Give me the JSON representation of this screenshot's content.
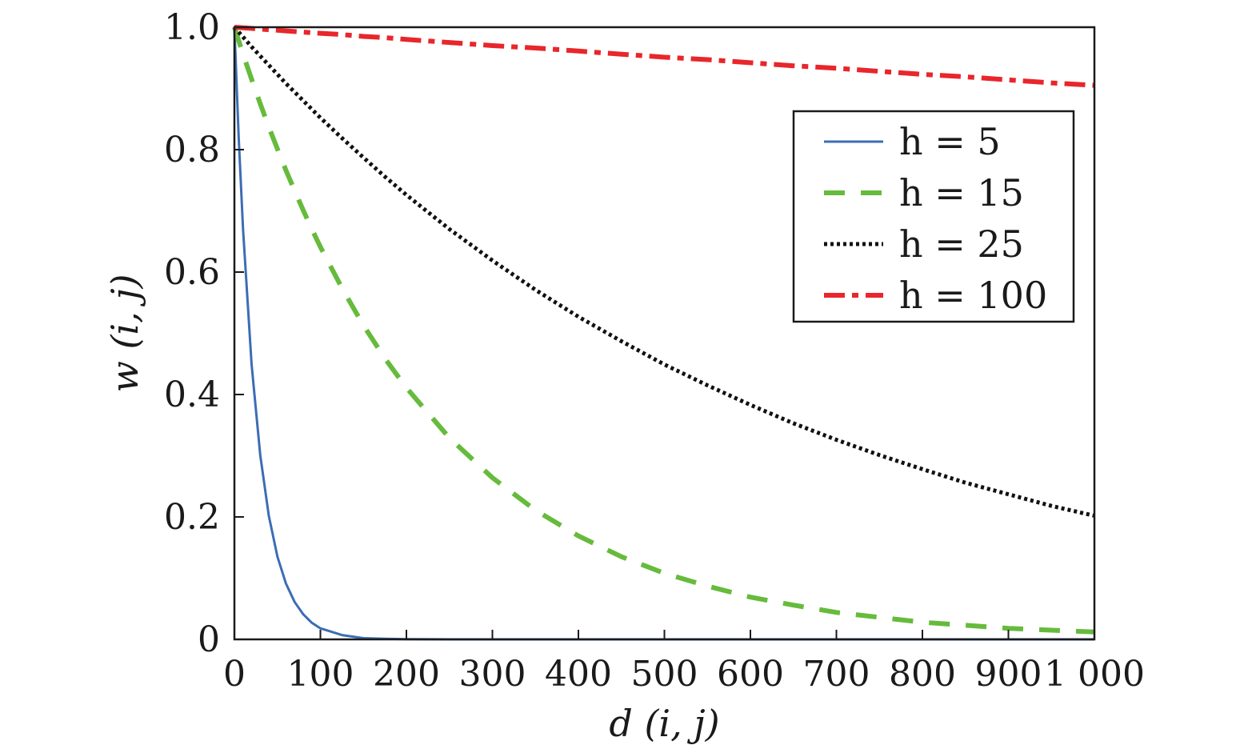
{
  "chart_data": {
    "type": "line",
    "xlabel": "d (i, j)",
    "ylabel": "w (i, j)",
    "xlim": [
      0,
      1000
    ],
    "ylim": [
      0,
      1
    ],
    "x_ticks": [
      0,
      100,
      200,
      300,
      400,
      500,
      600,
      700,
      800,
      900,
      1000
    ],
    "x_tick_labels": [
      "0",
      "100",
      "200",
      "300",
      "400",
      "500",
      "600",
      "700",
      "800",
      "900",
      "1 000"
    ],
    "y_ticks": [
      0,
      0.2,
      0.4,
      0.6,
      0.8,
      1.0
    ],
    "y_tick_labels": [
      "0",
      "0.2",
      "0.4",
      "0.6",
      "0.8",
      "1.0"
    ],
    "grid": false,
    "legend_position": "top-right",
    "x": [
      0,
      5,
      10,
      20,
      30,
      40,
      50,
      60,
      70,
      80,
      90,
      100,
      125,
      150,
      175,
      200,
      250,
      300,
      350,
      400,
      450,
      500,
      550,
      600,
      650,
      700,
      750,
      800,
      850,
      900,
      950,
      1000
    ],
    "series": [
      {
        "name": "h = 5",
        "color": "#3b6db5",
        "style": "solid",
        "values": [
          1.0,
          0.819,
          0.67,
          0.449,
          0.301,
          0.202,
          0.135,
          0.091,
          0.061,
          0.041,
          0.027,
          0.018,
          0.007,
          0.002,
          0.001,
          0.0003,
          0.0,
          0.0,
          0.0,
          0.0,
          0.0,
          0.0,
          0.0,
          0.0,
          0.0,
          0.0,
          0.0,
          0.0,
          0.0,
          0.0,
          0.0,
          0.0
        ]
      },
      {
        "name": "h = 15",
        "color": "#66bb3c",
        "style": "dashed",
        "values": [
          1.0,
          0.978,
          0.956,
          0.915,
          0.875,
          0.837,
          0.801,
          0.766,
          0.733,
          0.701,
          0.67,
          0.641,
          0.574,
          0.513,
          0.459,
          0.411,
          0.329,
          0.264,
          0.211,
          0.169,
          0.135,
          0.108,
          0.087,
          0.069,
          0.056,
          0.044,
          0.036,
          0.028,
          0.023,
          0.018,
          0.015,
          0.012
        ]
      },
      {
        "name": "h = 25",
        "color": "#111111",
        "style": "dotted",
        "values": [
          1.0,
          0.992,
          0.984,
          0.968,
          0.953,
          0.938,
          0.923,
          0.908,
          0.894,
          0.88,
          0.866,
          0.852,
          0.819,
          0.787,
          0.756,
          0.726,
          0.67,
          0.619,
          0.571,
          0.527,
          0.487,
          0.449,
          0.415,
          0.383,
          0.353,
          0.326,
          0.301,
          0.278,
          0.256,
          0.237,
          0.218,
          0.202
        ]
      },
      {
        "name": "h = 100",
        "color": "#e8262b",
        "style": "dashdot",
        "values": [
          1.0,
          0.9995,
          0.999,
          0.998,
          0.997,
          0.996,
          0.995,
          0.994,
          0.993,
          0.992,
          0.991,
          0.99,
          0.988,
          0.985,
          0.983,
          0.98,
          0.975,
          0.97,
          0.966,
          0.961,
          0.956,
          0.951,
          0.947,
          0.942,
          0.937,
          0.933,
          0.928,
          0.923,
          0.919,
          0.914,
          0.909,
          0.905
        ]
      }
    ]
  }
}
